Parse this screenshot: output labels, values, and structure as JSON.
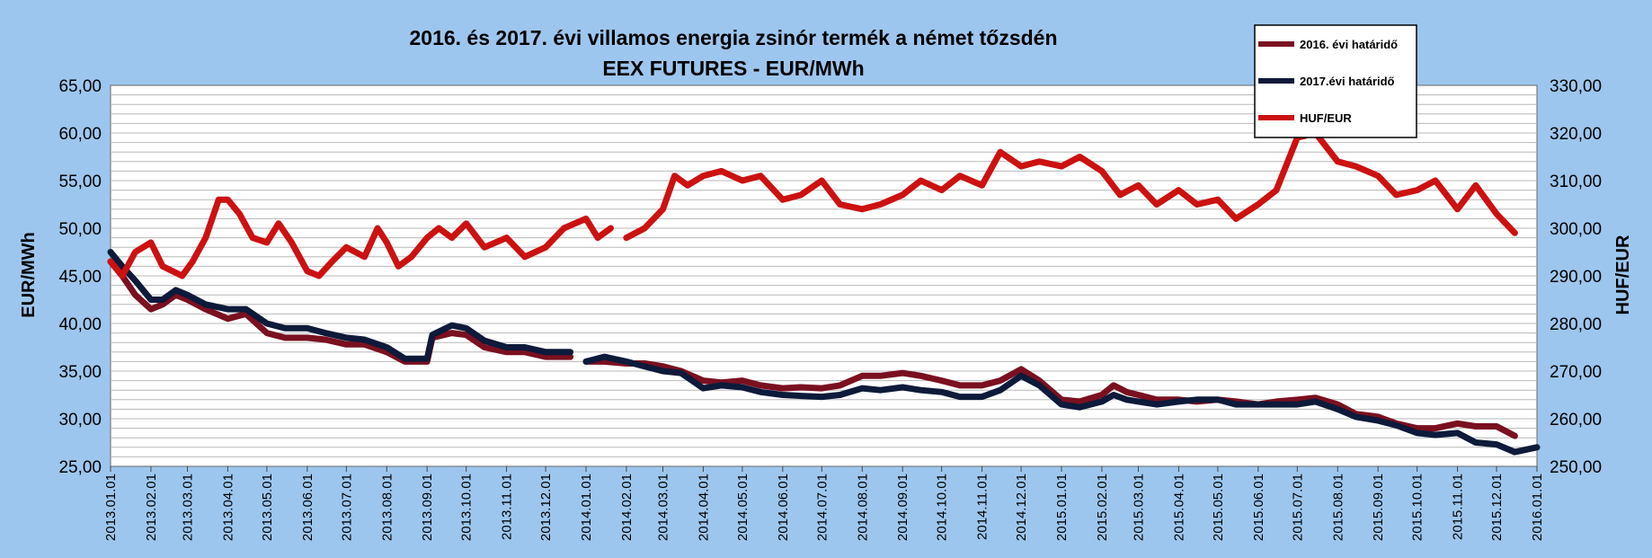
{
  "chart_data": {
    "type": "line",
    "title": "2016. és 2017. évi villamos energia zsinór termék a német tőzsdén",
    "subtitle": "EEX FUTURES - EUR/MWh",
    "ylabel": "EUR/MWh",
    "y2label": "HUF/EUR",
    "ylim": [
      25,
      65
    ],
    "y2lim": [
      250,
      330
    ],
    "yticks": [
      "25,00",
      "30,00",
      "35,00",
      "40,00",
      "45,00",
      "50,00",
      "55,00",
      "60,00",
      "65,00"
    ],
    "y2ticks": [
      "250,00",
      "260,00",
      "270,00",
      "280,00",
      "290,00",
      "300,00",
      "310,00",
      "320,00",
      "330,00"
    ],
    "xticks": [
      "2013.01.01",
      "2013.02.01",
      "2013.03.01",
      "2013.04.01",
      "2013.05.01",
      "2013.06.01",
      "2013.07.01",
      "2013.08.01",
      "2013.09.01",
      "2013.10.01",
      "2013.11.01",
      "2013.12.01",
      "2014.01.01",
      "2014.02.01",
      "2014.03.01",
      "2014.04.01",
      "2014.05.01",
      "2014.06.01",
      "2014.07.01",
      "2014.08.01",
      "2014.09.01",
      "2014.10.01",
      "2014.11.01",
      "2014.12.01",
      "2015.01.01",
      "2015.02.01",
      "2015.03.01",
      "2015.04.01",
      "2015.05.01",
      "2015.06.01",
      "2015.07.01",
      "2015.08.01",
      "2015.09.01",
      "2015.10.01",
      "2015.11.01",
      "2015.12.01",
      "2016.01.01"
    ],
    "grid": true,
    "legend_position": "top-right",
    "series": [
      {
        "name": "2016. évi határidő",
        "color": "#7a1020",
        "axis": "left",
        "points": [
          [
            "2013.01.01",
            46.5
          ],
          [
            "2013.01.10",
            45
          ],
          [
            "2013.01.20",
            43
          ],
          [
            "2013.02.01",
            41.5
          ],
          [
            "2013.02.10",
            42
          ],
          [
            "2013.02.20",
            43
          ],
          [
            "2013.03.01",
            42.5
          ],
          [
            "2013.03.15",
            41.5
          ],
          [
            "2013.04.01",
            40.5
          ],
          [
            "2013.04.15",
            41
          ],
          [
            "2013.05.01",
            39
          ],
          [
            "2013.05.15",
            38.5
          ],
          [
            "2013.06.01",
            38.5
          ],
          [
            "2013.06.15",
            38.3
          ],
          [
            "2013.07.01",
            37.8
          ],
          [
            "2013.07.15",
            37.8
          ],
          [
            "2013.08.01",
            37
          ],
          [
            "2013.08.15",
            36
          ],
          [
            "2013.09.01",
            36
          ],
          [
            "2013.09.05",
            38.5
          ],
          [
            "2013.09.20",
            39
          ],
          [
            "2013.10.01",
            38.8
          ],
          [
            "2013.10.15",
            37.5
          ],
          [
            "2013.11.01",
            37
          ],
          [
            "2013.11.15",
            37
          ],
          [
            "2013.12.01",
            36.5
          ],
          [
            "2013.12.20",
            36.5
          ],
          [
            null,
            null
          ],
          [
            "2014.01.01",
            36
          ],
          [
            "2014.01.15",
            36
          ],
          [
            "2014.02.01",
            35.8
          ],
          [
            "2014.02.15",
            35.8
          ],
          [
            "2014.03.01",
            35.5
          ],
          [
            "2014.03.15",
            35
          ],
          [
            "2014.04.01",
            34
          ],
          [
            "2014.04.15",
            33.8
          ],
          [
            "2014.05.01",
            34
          ],
          [
            "2014.05.15",
            33.5
          ],
          [
            "2014.06.01",
            33.2
          ],
          [
            "2014.06.15",
            33.3
          ],
          [
            "2014.07.01",
            33.2
          ],
          [
            "2014.07.15",
            33.5
          ],
          [
            "2014.08.01",
            34.5
          ],
          [
            "2014.08.15",
            34.5
          ],
          [
            "2014.09.01",
            34.8
          ],
          [
            "2014.09.15",
            34.5
          ],
          [
            "2014.10.01",
            34
          ],
          [
            "2014.10.15",
            33.5
          ],
          [
            "2014.11.01",
            33.5
          ],
          [
            "2014.11.15",
            34
          ],
          [
            "2014.12.01",
            35.2
          ],
          [
            "2014.12.15",
            34
          ],
          [
            "2015.01.01",
            32
          ],
          [
            "2015.01.15",
            31.8
          ],
          [
            "2015.02.01",
            32.5
          ],
          [
            "2015.02.10",
            33.5
          ],
          [
            "2015.02.20",
            32.8
          ],
          [
            "2015.03.01",
            32.5
          ],
          [
            "2015.03.15",
            32
          ],
          [
            "2015.04.01",
            32
          ],
          [
            "2015.04.15",
            31.8
          ],
          [
            "2015.05.01",
            32
          ],
          [
            "2015.05.15",
            31.8
          ],
          [
            "2015.06.01",
            31.5
          ],
          [
            "2015.06.15",
            31.8
          ],
          [
            "2015.07.01",
            32
          ],
          [
            "2015.07.15",
            32.2
          ],
          [
            "2015.08.01",
            31.5
          ],
          [
            "2015.08.15",
            30.5
          ],
          [
            "2015.09.01",
            30.2
          ],
          [
            "2015.09.15",
            29.5
          ],
          [
            "2015.10.01",
            29
          ],
          [
            "2015.10.15",
            29
          ],
          [
            "2015.11.01",
            29.5
          ],
          [
            "2015.11.15",
            29.2
          ],
          [
            "2015.12.01",
            29.2
          ],
          [
            "2015.12.15",
            28.2
          ]
        ]
      },
      {
        "name": "2017.évi határidő",
        "color": "#0d1a3a",
        "axis": "left",
        "points": [
          [
            "2013.01.01",
            47.5
          ],
          [
            "2013.01.10",
            46
          ],
          [
            "2013.01.20",
            44.5
          ],
          [
            "2013.02.01",
            42.5
          ],
          [
            "2013.02.10",
            42.5
          ],
          [
            "2013.02.20",
            43.5
          ],
          [
            "2013.03.01",
            43
          ],
          [
            "2013.03.15",
            42
          ],
          [
            "2013.04.01",
            41.5
          ],
          [
            "2013.04.15",
            41.5
          ],
          [
            "2013.05.01",
            40
          ],
          [
            "2013.05.15",
            39.5
          ],
          [
            "2013.06.01",
            39.5
          ],
          [
            "2013.06.15",
            39
          ],
          [
            "2013.07.01",
            38.5
          ],
          [
            "2013.07.15",
            38.3
          ],
          [
            "2013.08.01",
            37.5
          ],
          [
            "2013.08.15",
            36.3
          ],
          [
            "2013.09.01",
            36.3
          ],
          [
            "2013.09.05",
            38.8
          ],
          [
            "2013.09.20",
            39.8
          ],
          [
            "2013.10.01",
            39.5
          ],
          [
            "2013.10.15",
            38.2
          ],
          [
            "2013.11.01",
            37.5
          ],
          [
            "2013.11.15",
            37.5
          ],
          [
            "2013.12.01",
            37
          ],
          [
            "2013.12.20",
            37
          ],
          [
            null,
            null
          ],
          [
            "2014.01.01",
            36
          ],
          [
            "2014.01.15",
            36.5
          ],
          [
            "2014.02.01",
            36
          ],
          [
            "2014.02.15",
            35.5
          ],
          [
            "2014.03.01",
            35
          ],
          [
            "2014.03.15",
            34.8
          ],
          [
            "2014.04.01",
            33.2
          ],
          [
            "2014.04.15",
            33.5
          ],
          [
            "2014.05.01",
            33.3
          ],
          [
            "2014.05.15",
            32.8
          ],
          [
            "2014.06.01",
            32.5
          ],
          [
            "2014.06.15",
            32.4
          ],
          [
            "2014.07.01",
            32.3
          ],
          [
            "2014.07.15",
            32.5
          ],
          [
            "2014.08.01",
            33.2
          ],
          [
            "2014.08.15",
            33
          ],
          [
            "2014.09.01",
            33.3
          ],
          [
            "2014.09.15",
            33
          ],
          [
            "2014.10.01",
            32.8
          ],
          [
            "2014.10.15",
            32.3
          ],
          [
            "2014.11.01",
            32.3
          ],
          [
            "2014.11.15",
            33
          ],
          [
            "2014.12.01",
            34.5
          ],
          [
            "2014.12.15",
            33.5
          ],
          [
            "2015.01.01",
            31.5
          ],
          [
            "2015.01.15",
            31.2
          ],
          [
            "2015.02.01",
            31.8
          ],
          [
            "2015.02.10",
            32.5
          ],
          [
            "2015.02.20",
            32
          ],
          [
            "2015.03.01",
            31.8
          ],
          [
            "2015.03.15",
            31.5
          ],
          [
            "2015.04.01",
            31.8
          ],
          [
            "2015.04.15",
            32
          ],
          [
            "2015.05.01",
            32
          ],
          [
            "2015.05.15",
            31.5
          ],
          [
            "2015.06.01",
            31.5
          ],
          [
            "2015.06.15",
            31.5
          ],
          [
            "2015.07.01",
            31.5
          ],
          [
            "2015.07.15",
            31.8
          ],
          [
            "2015.08.01",
            31
          ],
          [
            "2015.08.15",
            30.2
          ],
          [
            "2015.09.01",
            29.8
          ],
          [
            "2015.09.15",
            29.3
          ],
          [
            "2015.10.01",
            28.5
          ],
          [
            "2015.10.15",
            28.3
          ],
          [
            "2015.11.01",
            28.5
          ],
          [
            "2015.11.15",
            27.5
          ],
          [
            "2015.12.01",
            27.3
          ],
          [
            "2015.12.15",
            26.5
          ],
          [
            "2016.01.01",
            27
          ]
        ]
      },
      {
        "name": "HUF/EUR",
        "color": "#cc1111",
        "axis": "right",
        "points": [
          [
            "2013.01.01",
            293
          ],
          [
            "2013.01.10",
            290
          ],
          [
            "2013.01.20",
            295
          ],
          [
            "2013.02.01",
            297
          ],
          [
            "2013.02.10",
            292
          ],
          [
            "2013.02.25",
            290
          ],
          [
            "2013.03.05",
            293
          ],
          [
            "2013.03.15",
            298
          ],
          [
            "2013.03.25",
            306
          ],
          [
            "2013.04.01",
            306
          ],
          [
            "2013.04.10",
            303
          ],
          [
            "2013.04.20",
            298
          ],
          [
            "2013.05.01",
            297
          ],
          [
            "2013.05.10",
            301
          ],
          [
            "2013.05.20",
            297
          ],
          [
            "2013.06.01",
            291
          ],
          [
            "2013.06.10",
            290
          ],
          [
            "2013.06.20",
            293
          ],
          [
            "2013.07.01",
            296
          ],
          [
            "2013.07.15",
            294
          ],
          [
            "2013.07.25",
            300
          ],
          [
            "2013.08.01",
            297
          ],
          [
            "2013.08.10",
            292
          ],
          [
            "2013.08.20",
            294
          ],
          [
            "2013.09.01",
            298
          ],
          [
            "2013.09.10",
            300
          ],
          [
            "2013.09.20",
            298
          ],
          [
            "2013.10.01",
            301
          ],
          [
            "2013.10.15",
            296
          ],
          [
            "2013.11.01",
            298
          ],
          [
            "2013.11.15",
            294
          ],
          [
            "2013.12.01",
            296
          ],
          [
            "2013.12.15",
            300
          ],
          [
            "2014.01.01",
            302
          ],
          [
            "2014.01.10",
            298
          ],
          [
            "2014.01.20",
            300
          ],
          [
            null,
            null
          ],
          [
            "2014.02.01",
            298
          ],
          [
            "2014.02.15",
            300
          ],
          [
            "2014.03.01",
            304
          ],
          [
            "2014.03.10",
            311
          ],
          [
            "2014.03.20",
            309
          ],
          [
            "2014.04.01",
            311
          ],
          [
            "2014.04.15",
            312
          ],
          [
            "2014.05.01",
            310
          ],
          [
            "2014.05.15",
            311
          ],
          [
            "2014.06.01",
            306
          ],
          [
            "2014.06.15",
            307
          ],
          [
            "2014.07.01",
            310
          ],
          [
            "2014.07.15",
            305
          ],
          [
            "2014.08.01",
            304
          ],
          [
            "2014.08.15",
            305
          ],
          [
            "2014.09.01",
            307
          ],
          [
            "2014.09.15",
            310
          ],
          [
            "2014.10.01",
            308
          ],
          [
            "2014.10.15",
            311
          ],
          [
            "2014.11.01",
            309
          ],
          [
            "2014.11.15",
            316
          ],
          [
            "2014.12.01",
            313
          ],
          [
            "2014.12.15",
            314
          ],
          [
            "2015.01.01",
            313
          ],
          [
            "2015.01.15",
            315
          ],
          [
            "2015.02.01",
            312
          ],
          [
            "2015.02.15",
            307
          ],
          [
            "2015.03.01",
            309
          ],
          [
            "2015.03.15",
            305
          ],
          [
            "2015.04.01",
            308
          ],
          [
            "2015.04.15",
            305
          ],
          [
            "2015.05.01",
            306
          ],
          [
            "2015.05.15",
            302
          ],
          [
            "2015.06.01",
            305
          ],
          [
            "2015.06.15",
            308
          ],
          [
            "2015.07.01",
            319
          ],
          [
            "2015.07.15",
            320
          ],
          [
            "2015.08.01",
            314
          ],
          [
            "2015.08.15",
            313
          ],
          [
            "2015.09.01",
            311
          ],
          [
            "2015.09.15",
            307
          ],
          [
            "2015.10.01",
            308
          ],
          [
            "2015.10.15",
            310
          ],
          [
            "2015.11.01",
            304
          ],
          [
            "2015.11.15",
            309
          ],
          [
            "2015.12.01",
            303
          ],
          [
            "2015.12.15",
            299
          ]
        ]
      }
    ]
  }
}
